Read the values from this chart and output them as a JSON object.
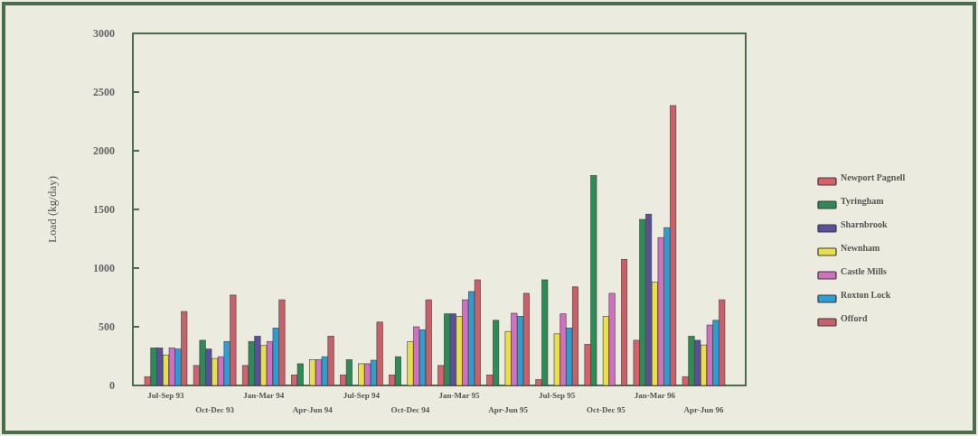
{
  "chart_data": {
    "type": "bar",
    "ylabel": "Load (kg/day)",
    "categories": [
      "Jul-Sep 93",
      "Oct-Dec 93",
      "Jan-Mar 94",
      "Apr-Jun 94",
      "Jul-Sep 94",
      "Oct-Dec 94",
      "Jan-Mar 95",
      "Apr-Jun 95",
      "Jul-Sep 95",
      "Oct-Dec 95",
      "Jan-Mar 96",
      "Apr-Jun 96"
    ],
    "series": [
      {
        "name": "Newport Pagnell",
        "color": "#d9606a",
        "values": [
          75,
          170,
          170,
          90,
          90,
          90,
          170,
          90,
          50,
          350,
          385,
          75
        ]
      },
      {
        "name": "Tyringham",
        "color": "#2e8b57",
        "values": [
          320,
          385,
          375,
          185,
          220,
          245,
          610,
          555,
          900,
          1790,
          1415,
          420
        ]
      },
      {
        "name": "Sharnbrook",
        "color": "#5a4f9a",
        "values": [
          320,
          310,
          420,
          null,
          null,
          null,
          610,
          null,
          null,
          null,
          1460,
          385
        ]
      },
      {
        "name": "Newnham",
        "color": "#e8e04a",
        "values": [
          260,
          230,
          340,
          220,
          185,
          375,
          590,
          460,
          440,
          590,
          880,
          345
        ]
      },
      {
        "name": "Castle Mills",
        "color": "#d070c0",
        "values": [
          320,
          245,
          375,
          220,
          185,
          500,
          730,
          615,
          610,
          785,
          1260,
          515
        ]
      },
      {
        "name": "Roxton Lock",
        "color": "#2a9fd6",
        "values": [
          310,
          375,
          490,
          245,
          215,
          475,
          800,
          590,
          490,
          null,
          1345,
          555
        ]
      },
      {
        "name": "Offord",
        "color": "#c8606a",
        "values": [
          630,
          770,
          730,
          420,
          540,
          730,
          900,
          785,
          840,
          1075,
          2385,
          730
        ]
      }
    ],
    "ylim": [
      0,
      3000
    ],
    "yticks": [
      0,
      500,
      1000,
      1500,
      2000,
      2500,
      3000
    ],
    "grid": false,
    "legend": "right"
  }
}
